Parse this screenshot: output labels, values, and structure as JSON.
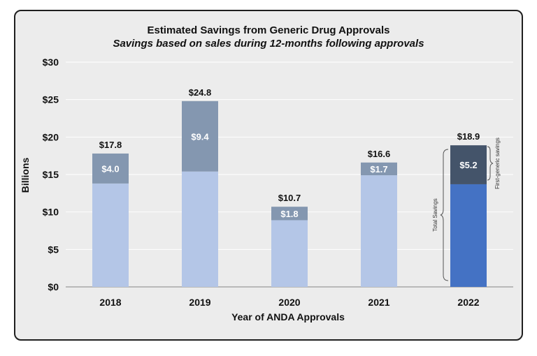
{
  "chart_data": {
    "type": "bar",
    "title": "Estimated Savings from Generic Drug Approvals",
    "subtitle": "Savings based on sales during 12-months following approvals",
    "xlabel": "Year of ANDA Approvals",
    "ylabel": "Billions",
    "ylim": [
      0,
      30
    ],
    "yticks": [
      0,
      5,
      10,
      15,
      20,
      25,
      30
    ],
    "ytick_labels": [
      "$0",
      "$5",
      "$10",
      "$15",
      "$20",
      "$25",
      "$30"
    ],
    "categories": [
      "2018",
      "2019",
      "2020",
      "2021",
      "2022"
    ],
    "series": [
      {
        "values": [
          13.8,
          15.4,
          8.9,
          14.9,
          13.7
        ]
      },
      {
        "values": [
          4.0,
          9.4,
          1.8,
          1.7,
          5.2
        ]
      }
    ],
    "segment_labels": [
      "$4.0",
      "$9.4",
      "$1.8",
      "$1.7",
      "$5.2"
    ],
    "totals": [
      17.8,
      24.8,
      10.7,
      16.6,
      18.9
    ],
    "total_labels": [
      "$17.8",
      "$24.8",
      "$10.7",
      "$16.6",
      "$18.9"
    ],
    "grid": true,
    "annotations": {
      "total_savings": "Total Savings",
      "first_generic_savings": "First-generic savings"
    },
    "colors": {
      "base": "#b4c6e7",
      "top": "#8497b0",
      "base_highlight": "#4472c4",
      "top_highlight": "#44546a"
    }
  }
}
